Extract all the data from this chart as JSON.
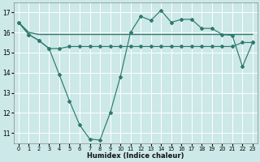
{
  "xlabel": "Humidex (Indice chaleur)",
  "ylabel": "",
  "background_color": "#cce8e8",
  "grid_color": "#ffffff",
  "line_color": "#2d7a6e",
  "xlim": [
    -0.5,
    23.5
  ],
  "ylim": [
    10.5,
    17.5
  ],
  "xticks": [
    0,
    1,
    2,
    3,
    4,
    5,
    6,
    7,
    8,
    9,
    10,
    11,
    12,
    13,
    14,
    15,
    16,
    17,
    18,
    19,
    20,
    21,
    22,
    23
  ],
  "yticks": [
    11,
    12,
    13,
    14,
    15,
    16,
    17
  ],
  "line1_x": [
    0,
    1,
    2,
    3,
    4,
    5,
    6,
    7,
    8,
    9,
    10,
    11,
    12,
    13,
    14,
    15,
    16,
    17,
    18,
    19,
    20,
    21,
    22,
    23
  ],
  "line1_y": [
    16.5,
    15.9,
    15.6,
    15.2,
    13.9,
    12.6,
    11.4,
    10.7,
    10.65,
    12.0,
    13.8,
    16.0,
    16.8,
    16.6,
    17.1,
    16.5,
    16.65,
    16.65,
    16.2,
    16.2,
    15.9,
    15.85,
    14.3,
    15.5
  ],
  "line2_x": [
    0,
    1,
    2,
    3,
    4,
    5,
    6,
    7,
    8,
    9,
    10,
    11,
    12,
    13,
    14,
    15,
    16,
    17,
    18,
    19,
    20,
    21,
    22,
    23
  ],
  "line2_y": [
    16.5,
    15.9,
    15.6,
    15.2,
    15.2,
    15.3,
    15.3,
    15.3,
    15.3,
    15.3,
    15.3,
    15.3,
    15.3,
    15.3,
    15.3,
    15.3,
    15.3,
    15.3,
    15.3,
    15.3,
    15.3,
    15.3,
    15.5,
    15.5
  ],
  "line3_x": [
    0,
    1,
    2,
    3,
    4,
    5,
    6,
    7,
    8,
    9,
    10,
    11,
    12,
    13,
    14,
    15,
    16,
    17,
    18,
    19,
    20,
    21,
    22,
    23
  ],
  "line3_y": [
    16.5,
    16.0,
    15.9,
    15.9,
    15.9,
    15.9,
    15.9,
    15.9,
    15.9,
    15.9,
    15.9,
    15.9,
    15.9,
    15.9,
    15.9,
    15.9,
    15.9,
    15.9,
    15.9,
    15.9,
    15.9,
    15.9,
    15.9,
    15.9
  ]
}
